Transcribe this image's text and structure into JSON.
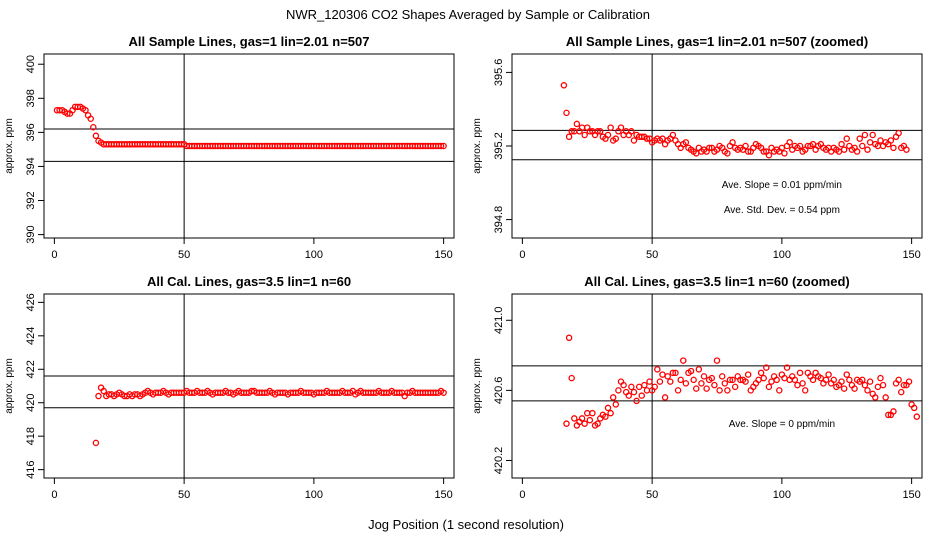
{
  "page": {
    "title": "NWR_120306  CO2 Shapes Averaged by Sample or Calibration",
    "xlabel": "Jog Position (1 second resolution)"
  },
  "colors": {
    "points": "#ff0000",
    "lines": "#000000"
  },
  "chart_data": [
    {
      "type": "scatter",
      "title": "All Sample Lines, gas=1 lin=2.01 n=507",
      "xlabel": "",
      "ylabel": "approx. ppm",
      "xlim": [
        -4,
        154
      ],
      "ylim": [
        389.8,
        400.6
      ],
      "xticks": [
        "0",
        "50",
        "100",
        "150"
      ],
      "yticks": [
        "390",
        "392",
        "394",
        "396",
        "398",
        "400"
      ],
      "vline": 50,
      "hlines": [
        394.3,
        396.2
      ],
      "annotations": [],
      "series": [
        {
          "x_start": 1,
          "x_step": 1,
          "y": [
            397.3,
            397.3,
            397.3,
            397.2,
            397.1,
            397.1,
            397.3,
            397.5,
            397.5,
            397.5,
            397.4,
            397.3,
            397.0,
            396.8,
            396.3,
            395.8,
            395.5,
            395.4,
            395.3,
            395.3,
            395.3,
            395.3,
            395.3,
            395.3,
            395.3,
            395.3,
            395.3,
            395.3,
            395.3,
            395.3,
            395.3,
            395.3,
            395.3,
            395.3,
            395.3,
            395.3,
            395.3,
            395.3,
            395.3,
            395.3,
            395.3,
            395.3,
            395.3,
            395.3,
            395.3,
            395.3,
            395.3,
            395.3,
            395.3,
            395.3,
            395.2,
            395.2,
            395.2,
            395.2,
            395.2,
            395.2,
            395.2,
            395.2,
            395.2,
            395.2,
            395.2,
            395.2,
            395.2,
            395.2,
            395.2,
            395.2,
            395.2,
            395.2,
            395.2,
            395.2,
            395.2,
            395.2,
            395.2,
            395.2,
            395.2,
            395.2,
            395.2,
            395.2,
            395.2,
            395.2,
            395.2,
            395.2,
            395.2,
            395.2,
            395.2,
            395.2,
            395.2,
            395.2,
            395.2,
            395.2,
            395.2,
            395.2,
            395.2,
            395.2,
            395.2,
            395.2,
            395.2,
            395.2,
            395.2,
            395.2,
            395.2,
            395.2,
            395.2,
            395.2,
            395.2,
            395.2,
            395.2,
            395.2,
            395.2,
            395.2,
            395.2,
            395.2,
            395.2,
            395.2,
            395.2,
            395.2,
            395.2,
            395.2,
            395.2,
            395.2,
            395.2,
            395.2,
            395.2,
            395.2,
            395.2,
            395.2,
            395.2,
            395.2,
            395.2,
            395.2,
            395.2,
            395.2,
            395.2,
            395.2,
            395.2,
            395.2,
            395.2,
            395.2,
            395.2,
            395.2,
            395.2,
            395.2,
            395.2,
            395.2,
            395.2,
            395.2,
            395.2,
            395.2,
            395.2,
            395.2
          ]
        }
      ]
    },
    {
      "type": "scatter",
      "title": "All Sample Lines, gas=1 lin=2.01 n=507 (zoomed)",
      "xlabel": "",
      "ylabel": "approx. ppm",
      "xlim": [
        -4,
        154
      ],
      "ylim": [
        394.7,
        395.7
      ],
      "xticks": [
        "0",
        "50",
        "100",
        "150"
      ],
      "yticks": [
        "394.8",
        "395.2",
        "395.6"
      ],
      "vline": 50,
      "hlines": [
        395.125,
        395.285
      ],
      "annotations": [
        "Ave. Slope =  0.01  ppm/min",
        "Ave. Std. Dev. =  0.54  ppm"
      ],
      "series": [
        {
          "x_start": 16,
          "x_step": 1,
          "y": [
            395.53,
            395.38,
            395.25,
            395.28,
            395.28,
            395.32,
            395.28,
            395.3,
            395.26,
            395.3,
            395.28,
            395.28,
            395.26,
            395.28,
            395.28,
            395.25,
            395.24,
            395.26,
            395.3,
            395.23,
            395.24,
            395.28,
            395.3,
            395.26,
            395.28,
            395.26,
            395.28,
            395.23,
            395.26,
            395.25,
            395.25,
            395.25,
            395.24,
            395.24,
            395.22,
            395.23,
            395.24,
            395.23,
            395.24,
            395.21,
            395.23,
            395.24,
            395.26,
            395.23,
            395.21,
            395.19,
            395.21,
            395.22,
            395.19,
            395.18,
            395.17,
            395.16,
            395.19,
            395.17,
            395.18,
            395.17,
            395.19,
            395.19,
            395.17,
            395.18,
            395.2,
            395.19,
            395.17,
            395.16,
            395.2,
            395.22,
            395.19,
            395.18,
            395.19,
            395.18,
            395.2,
            395.17,
            395.17,
            395.19,
            395.21,
            395.2,
            395.19,
            395.17,
            395.17,
            395.15,
            395.19,
            395.17,
            395.18,
            395.17,
            395.19,
            395.16,
            395.2,
            395.22,
            395.18,
            395.2,
            395.19,
            395.2,
            395.17,
            395.18,
            395.2,
            395.2,
            395.21,
            395.18,
            395.2,
            395.21,
            395.19,
            395.18,
            395.19,
            395.17,
            395.19,
            395.18,
            395.17,
            395.21,
            395.18,
            395.24,
            395.2,
            395.18,
            395.19,
            395.17,
            395.24,
            395.2,
            395.26,
            395.18,
            395.22,
            395.26,
            395.21,
            395.2,
            395.23,
            395.2,
            395.22,
            395.21,
            395.23,
            395.19,
            395.25,
            395.27,
            395.19,
            395.2,
            395.18
          ]
        }
      ]
    },
    {
      "type": "scatter",
      "title": "All Cal. Lines, gas=3.5 lin=1 n=60",
      "xlabel": "",
      "ylabel": "approx. ppm",
      "xlim": [
        -4,
        154
      ],
      "ylim": [
        415.5,
        426.5
      ],
      "xticks": [
        "0",
        "50",
        "100",
        "150"
      ],
      "yticks": [
        "416",
        "418",
        "420",
        "422",
        "424",
        "426"
      ],
      "vline": 50,
      "hlines": [
        419.7,
        421.6
      ],
      "annotations": [],
      "series": [
        {
          "x_start": 16,
          "x_step": 1,
          "y": [
            417.6,
            420.4,
            420.9,
            420.7,
            420.4,
            420.5,
            420.5,
            420.4,
            420.5,
            420.6,
            420.5,
            420.4,
            420.4,
            420.5,
            420.4,
            420.5,
            420.5,
            420.4,
            420.5,
            420.6,
            420.7,
            420.6,
            420.5,
            420.6,
            420.6,
            420.6,
            420.7,
            420.6,
            420.5,
            420.6,
            420.6,
            420.6,
            420.6,
            420.6,
            420.6,
            420.7,
            420.6,
            420.6,
            420.6,
            420.7,
            420.6,
            420.6,
            420.6,
            420.7,
            420.6,
            420.5,
            420.6,
            420.6,
            420.6,
            420.6,
            420.7,
            420.6,
            420.6,
            420.5,
            420.6,
            420.7,
            420.6,
            420.6,
            420.6,
            420.6,
            420.7,
            420.7,
            420.6,
            420.6,
            420.6,
            420.6,
            420.6,
            420.7,
            420.6,
            420.5,
            420.6,
            420.6,
            420.6,
            420.6,
            420.5,
            420.6,
            420.6,
            420.6,
            420.6,
            420.7,
            420.6,
            420.6,
            420.6,
            420.6,
            420.5,
            420.6,
            420.6,
            420.6,
            420.6,
            420.7,
            420.6,
            420.6,
            420.6,
            420.6,
            420.6,
            420.7,
            420.6,
            420.6,
            420.6,
            420.7,
            420.5,
            420.6,
            420.7,
            420.6,
            420.6,
            420.6,
            420.6,
            420.6,
            420.6,
            420.7,
            420.6,
            420.6,
            420.6,
            420.6,
            420.7,
            420.6,
            420.6,
            420.6,
            420.6,
            420.4,
            420.6,
            420.6,
            420.7,
            420.6,
            420.6,
            420.6,
            420.6,
            420.6,
            420.6,
            420.6,
            420.6,
            420.6,
            420.6,
            420.7,
            420.6
          ]
        }
      ]
    },
    {
      "type": "scatter",
      "title": "All Cal. Lines, gas=3.5 lin=1 n=60 (zoomed)",
      "xlabel": "",
      "ylabel": "approx. ppm",
      "xlim": [
        -4,
        154
      ],
      "ylim": [
        420.1,
        421.15
      ],
      "xticks": [
        "0",
        "50",
        "100",
        "150"
      ],
      "yticks": [
        "420.2",
        "420.6",
        "421.0"
      ],
      "vline": 50,
      "hlines": [
        420.54,
        420.74
      ],
      "annotations": [
        "Ave. Slope =  0  ppm/min"
      ],
      "series": [
        {
          "x_start": 17,
          "x_step": 1,
          "y": [
            420.41,
            420.9,
            420.67,
            420.44,
            420.4,
            420.42,
            420.44,
            420.41,
            420.47,
            420.43,
            420.47,
            420.4,
            420.41,
            420.44,
            420.46,
            420.45,
            420.5,
            420.47,
            420.56,
            420.52,
            420.6,
            420.65,
            420.63,
            420.59,
            420.57,
            420.62,
            420.59,
            420.54,
            420.62,
            420.57,
            420.63,
            420.6,
            420.65,
            420.6,
            420.62,
            420.72,
            420.65,
            420.69,
            420.56,
            420.68,
            420.65,
            420.7,
            420.7,
            420.6,
            420.66,
            420.77,
            420.64,
            420.7,
            420.71,
            420.66,
            420.61,
            420.72,
            420.64,
            420.68,
            420.61,
            420.66,
            420.67,
            420.63,
            420.77,
            420.6,
            420.68,
            420.64,
            420.6,
            420.66,
            420.66,
            420.62,
            420.68,
            420.66,
            420.66,
            420.65,
            420.69,
            420.6,
            420.62,
            420.64,
            420.66,
            420.7,
            420.67,
            420.73,
            420.62,
            420.65,
            420.68,
            420.66,
            420.6,
            420.69,
            420.67,
            420.73,
            420.66,
            420.68,
            420.66,
            420.63,
            420.7,
            420.64,
            420.6,
            420.7,
            420.68,
            420.66,
            420.7,
            420.68,
            420.67,
            420.64,
            420.66,
            420.69,
            420.64,
            420.66,
            420.62,
            420.63,
            420.65,
            420.61,
            420.69,
            420.66,
            420.63,
            420.61,
            420.66,
            420.65,
            420.66,
            420.63,
            420.6,
            420.65,
            420.58,
            420.56,
            420.62,
            420.67,
            420.63,
            420.56,
            420.46,
            420.46,
            420.48,
            420.64,
            420.66,
            420.59,
            420.63,
            420.63,
            420.65,
            420.52,
            420.5,
            420.45
          ]
        }
      ]
    }
  ]
}
